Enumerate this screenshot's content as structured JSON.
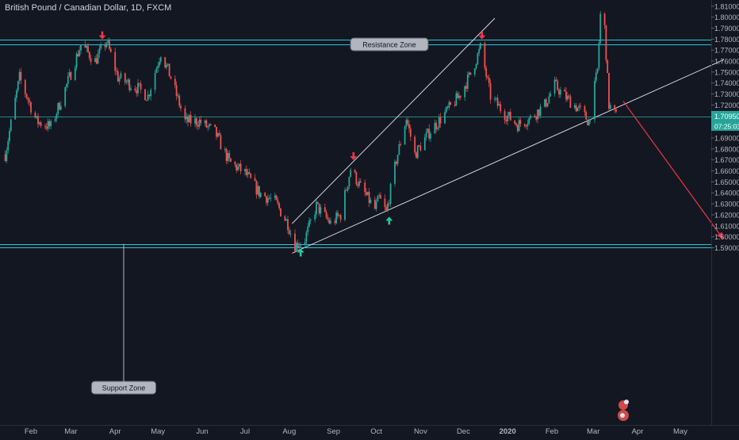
{
  "chart_data": {
    "type": "candlestick",
    "title": "British Pound / Canadian Dollar, 1D, FXCM",
    "ylim": [
      1.585,
      1.812
    ],
    "y_ticks": [
      "1.81000",
      "1.80000",
      "1.79000",
      "1.78000",
      "1.77000",
      "1.76000",
      "1.75000",
      "1.74000",
      "1.73000",
      "1.72000",
      "1.71000",
      "1.70000",
      "1.69000",
      "1.68000",
      "1.67000",
      "1.66000",
      "1.65000",
      "1.64000",
      "1.63000",
      "1.62000",
      "1.61000",
      "1.60000",
      "1.59000"
    ],
    "x_labels": [
      {
        "label": "Feb",
        "date": "2019-02-01"
      },
      {
        "label": "Mar",
        "date": "2019-03-01"
      },
      {
        "label": "Apr",
        "date": "2019-04-01"
      },
      {
        "label": "May",
        "date": "2019-05-01"
      },
      {
        "label": "Jun",
        "date": "2019-06-01"
      },
      {
        "label": "Jul",
        "date": "2019-07-01"
      },
      {
        "label": "Aug",
        "date": "2019-08-01"
      },
      {
        "label": "Sep",
        "date": "2019-09-01"
      },
      {
        "label": "Oct",
        "date": "2019-10-01"
      },
      {
        "label": "Nov",
        "date": "2019-11-01"
      },
      {
        "label": "Dec",
        "date": "2019-12-01"
      },
      {
        "label": "2020",
        "date": "2020-01-01"
      },
      {
        "label": "Feb",
        "date": "2020-02-01"
      },
      {
        "label": "Mar",
        "date": "2020-03-01"
      },
      {
        "label": "Apr",
        "date": "2020-04-01"
      },
      {
        "label": "May",
        "date": "2020-05-01"
      }
    ],
    "price_path": [
      [
        "2019-01-14",
        1.675
      ],
      [
        "2019-01-24",
        1.745
      ],
      [
        "2019-02-05",
        1.705
      ],
      [
        "2019-02-15",
        1.7
      ],
      [
        "2019-02-28",
        1.745
      ],
      [
        "2019-03-08",
        1.775
      ],
      [
        "2019-03-18",
        1.76
      ],
      [
        "2019-03-26",
        1.778
      ],
      [
        "2019-04-03",
        1.745
      ],
      [
        "2019-04-17",
        1.735
      ],
      [
        "2019-04-24",
        1.728
      ],
      [
        "2019-05-03",
        1.768
      ],
      [
        "2019-05-10",
        1.745
      ],
      [
        "2019-05-20",
        1.705
      ],
      [
        "2019-05-30",
        1.705
      ],
      [
        "2019-06-10",
        1.695
      ],
      [
        "2019-06-20",
        1.668
      ],
      [
        "2019-07-01",
        1.658
      ],
      [
        "2019-07-11",
        1.64
      ],
      [
        "2019-07-22",
        1.632
      ],
      [
        "2019-07-31",
        1.612
      ],
      [
        "2019-08-05",
        1.592
      ],
      [
        "2019-08-12",
        1.598
      ],
      [
        "2019-08-20",
        1.628
      ],
      [
        "2019-08-30",
        1.612
      ],
      [
        "2019-09-06",
        1.62
      ],
      [
        "2019-09-13",
        1.662
      ],
      [
        "2019-09-20",
        1.645
      ],
      [
        "2019-09-30",
        1.625
      ],
      [
        "2019-10-03",
        1.635
      ],
      [
        "2019-10-08",
        1.622
      ],
      [
        "2019-10-15",
        1.67
      ],
      [
        "2019-10-22",
        1.708
      ],
      [
        "2019-10-28",
        1.675
      ],
      [
        "2019-11-07",
        1.695
      ],
      [
        "2019-11-18",
        1.712
      ],
      [
        "2019-11-28",
        1.728
      ],
      [
        "2019-12-06",
        1.748
      ],
      [
        "2019-12-13",
        1.772
      ],
      [
        "2019-12-20",
        1.728
      ],
      [
        "2019-12-30",
        1.712
      ],
      [
        "2020-01-08",
        1.702
      ],
      [
        "2020-01-17",
        1.708
      ],
      [
        "2020-01-27",
        1.72
      ],
      [
        "2020-02-03",
        1.738
      ],
      [
        "2020-02-10",
        1.728
      ],
      [
        "2020-02-20",
        1.716
      ],
      [
        "2020-02-27",
        1.705
      ],
      [
        "2020-03-04",
        1.752
      ],
      [
        "2020-03-06",
        1.802
      ],
      [
        "2020-03-09",
        1.79
      ],
      [
        "2020-03-12",
        1.72
      ],
      [
        "2020-03-17",
        1.7095
      ]
    ],
    "last_price_label": "1.70950",
    "countdown_label": "07:25:03",
    "current_price": 1.7095,
    "resistance_zone": {
      "label": "Resistance Zone",
      "from": 1.7755,
      "to": 1.7795
    },
    "support_zone": {
      "label": "Support Zone",
      "from": 1.59,
      "to": 1.5935
    },
    "trendlines": [
      {
        "name": "upper-channel-line",
        "from": [
          "2019-08-03",
          1.612
        ],
        "to": [
          "2019-12-23",
          1.799
        ]
      },
      {
        "name": "lower-channel-line",
        "from": [
          "2019-08-03",
          1.585
        ],
        "to": [
          "2020-05-31",
          1.761
        ]
      }
    ],
    "projection_arrow": {
      "from": [
        "2020-03-22",
        1.7235
      ],
      "to": [
        "2020-05-31",
        1.598
      ],
      "color": "#f23645"
    },
    "markers": [
      {
        "type": "down",
        "date": "2019-03-23",
        "price": 1.7805,
        "color": "#f23645"
      },
      {
        "type": "down",
        "date": "2019-12-14",
        "price": 1.7805,
        "color": "#f23645"
      },
      {
        "type": "down",
        "date": "2019-09-15",
        "price": 1.6705,
        "color": "#f23645"
      },
      {
        "type": "up",
        "date": "2019-10-10",
        "price": 1.6175,
        "color": "#26c6a0"
      },
      {
        "type": "up",
        "date": "2019-08-09",
        "price": 1.5885,
        "color": "#26c6a0"
      }
    ],
    "colors": {
      "background": "#131722",
      "up": "#26a69a",
      "down": "#ef5350",
      "zone_line": "#26c6da",
      "axis_text": "#b2b5be",
      "price_line": "#26a69a"
    }
  }
}
